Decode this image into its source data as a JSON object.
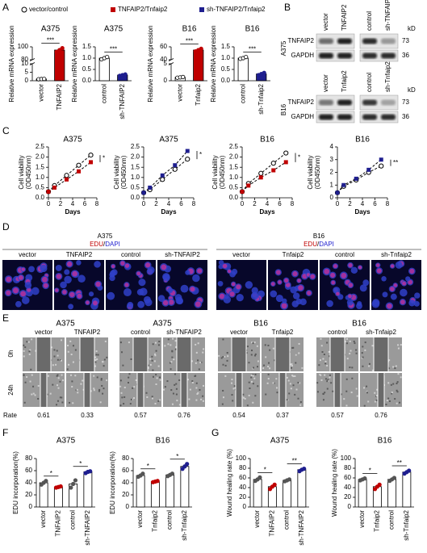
{
  "panel_labels": [
    "A",
    "B",
    "C",
    "D",
    "E",
    "F",
    "G"
  ],
  "legend": [
    {
      "label": "vector/control",
      "marker": "open-circle",
      "color": "#000000"
    },
    {
      "label": "TNFAIP2/Tnfaip2",
      "marker": "square",
      "color": "#c00000"
    },
    {
      "label": "sh-TNFAIP2/Tnfaip2",
      "marker": "square",
      "color": "#1f1f8f"
    }
  ],
  "chart_data": [
    {
      "type": "bar",
      "title": "A375",
      "ylabel": "Relative mRNA expression",
      "categories": [
        "vector",
        "TNFAIP2"
      ],
      "values": [
        1,
        95
      ],
      "points": [
        [
          0.9,
          1,
          1.1
        ],
        [
          92,
          95,
          98
        ]
      ],
      "colors": [
        "#ffffff",
        "#c00000"
      ],
      "point_colors": [
        "#ffffff",
        "#c00000"
      ],
      "ylim": [
        0,
        100
      ],
      "yticks": [
        0,
        5,
        10,
        80,
        100
      ],
      "broken_axis": true,
      "significance": [
        "***"
      ]
    },
    {
      "type": "bar",
      "title": "A375",
      "ylabel": "Relative mRNA expression",
      "categories": [
        "control",
        "sh-TNFAIP2"
      ],
      "values": [
        1,
        0.25
      ],
      "points": [
        [
          0.95,
          1,
          1.05
        ],
        [
          0.22,
          0.25,
          0.28
        ]
      ],
      "colors": [
        "#ffffff",
        "#1f1f8f"
      ],
      "point_colors": [
        "#ffffff",
        "#1f1f8f"
      ],
      "ylim": [
        0,
        1.5
      ],
      "yticks": [
        {
          "value": 0,
          "label": "0.0"
        },
        0.5,
        {
          "value": 1,
          "label": "1.0"
        },
        1.5
      ],
      "broken_axis": false,
      "significance": [
        "***"
      ]
    },
    {
      "type": "bar",
      "title": "B16",
      "ylabel": "Relative mRNA expression",
      "categories": [
        "vector",
        "Tnfaip2"
      ],
      "values": [
        1,
        55
      ],
      "points": [
        [
          0.9,
          1,
          1.1
        ],
        [
          53,
          55,
          57
        ]
      ],
      "colors": [
        "#ffffff",
        "#c00000"
      ],
      "point_colors": [
        "#ffffff",
        "#c00000"
      ],
      "ylim": [
        0,
        60
      ],
      "yticks": [
        0,
        5,
        40,
        60
      ],
      "broken_axis": true,
      "significance": [
        "***"
      ]
    },
    {
      "type": "bar",
      "title": "B16",
      "ylabel": "Relative mRNA expression",
      "categories": [
        "control",
        "sh-Tnfaip2"
      ],
      "values": [
        1,
        0.3
      ],
      "points": [
        [
          0.97,
          1,
          1.05
        ],
        [
          0.25,
          0.3,
          0.35
        ]
      ],
      "colors": [
        "#ffffff",
        "#1f1f8f"
      ],
      "point_colors": [
        "#ffffff",
        "#1f1f8f"
      ],
      "ylim": [
        0,
        1.5
      ],
      "yticks": [
        {
          "value": 0,
          "label": "0.0"
        },
        0.5,
        {
          "value": 1,
          "label": "1.0"
        },
        1.5
      ],
      "broken_axis": false,
      "significance": [
        "***"
      ]
    },
    {
      "type": "line",
      "title": "A375",
      "xlabel": "Days",
      "ylabel": [
        "Cell viability",
        "(OD450nm)"
      ],
      "x": [
        0,
        1,
        3,
        5,
        7
      ],
      "xlim": [
        0,
        8
      ],
      "xticks": [
        0,
        2,
        4,
        6,
        8
      ],
      "ylim": [
        0,
        2.5
      ],
      "yticks": [
        {
          "value": 0,
          "label": "0.0"
        },
        0.5,
        {
          "value": 1,
          "label": "1.0"
        },
        1.5,
        {
          "value": 2,
          "label": "2.0"
        },
        2.5
      ],
      "series": [
        {
          "color": "#000000",
          "marker": "open-circle",
          "values": [
            0.3,
            0.6,
            1.1,
            1.6,
            2.1
          ]
        },
        {
          "color": "#c00000",
          "marker": "square",
          "values": [
            0.3,
            0.5,
            0.9,
            1.3,
            1.75
          ]
        }
      ],
      "significance": "*"
    },
    {
      "type": "line",
      "title": "A375",
      "xlabel": "Days",
      "ylabel": [
        "Cell viability",
        "(OD450nm)"
      ],
      "x": [
        0,
        1,
        3,
        5,
        7
      ],
      "xlim": [
        0,
        8
      ],
      "xticks": [
        0,
        2,
        4,
        6,
        8
      ],
      "ylim": [
        0,
        2.5
      ],
      "yticks": [
        {
          "value": 0,
          "label": "0.0"
        },
        0.5,
        {
          "value": 1,
          "label": "1.0"
        },
        1.5,
        {
          "value": 2,
          "label": "2.0"
        },
        2.5
      ],
      "series": [
        {
          "color": "#000000",
          "marker": "open-circle",
          "values": [
            0.25,
            0.4,
            0.9,
            1.4,
            1.9
          ]
        },
        {
          "color": "#1f1f8f",
          "marker": "square",
          "values": [
            0.25,
            0.5,
            1.1,
            1.6,
            2.3
          ]
        }
      ],
      "significance": "*"
    },
    {
      "type": "line",
      "title": "B16",
      "xlabel": "Days",
      "ylabel": [
        "Cell viability",
        "(OD450nm)"
      ],
      "x": [
        0,
        1,
        3,
        5,
        7
      ],
      "xlim": [
        0,
        8
      ],
      "xticks": [
        0,
        2,
        4,
        6,
        8
      ],
      "ylim": [
        0,
        2.5
      ],
      "yticks": [
        {
          "value": 0,
          "label": "0.0"
        },
        0.5,
        {
          "value": 1,
          "label": "1.0"
        },
        1.5,
        {
          "value": 2,
          "label": "2.0"
        },
        2.5
      ],
      "series": [
        {
          "color": "#000000",
          "marker": "open-circle",
          "values": [
            0.3,
            0.7,
            1.2,
            1.7,
            2.2
          ]
        },
        {
          "color": "#c00000",
          "marker": "square",
          "values": [
            0.3,
            0.6,
            1.0,
            1.35,
            1.75
          ]
        }
      ],
      "significance": "*"
    },
    {
      "type": "line",
      "title": "B16",
      "xlabel": "Days",
      "ylabel": [
        "Cell viability",
        "(OD450nm)"
      ],
      "x": [
        0,
        1,
        3,
        5,
        7
      ],
      "xlim": [
        0,
        8
      ],
      "xticks": [
        0,
        2,
        4,
        6,
        8
      ],
      "ylim": [
        0,
        4
      ],
      "yticks": [
        0,
        1,
        2,
        3,
        4
      ],
      "series": [
        {
          "color": "#000000",
          "marker": "open-circle",
          "values": [
            0.4,
            0.9,
            1.4,
            2.0,
            2.5
          ]
        },
        {
          "color": "#1f1f8f",
          "marker": "square",
          "values": [
            0.4,
            1.0,
            1.5,
            2.2,
            3.0
          ]
        }
      ],
      "significance": "**"
    },
    {
      "type": "bar",
      "title": "A375",
      "ylabel": "EDU incorporation(%)",
      "categories": [
        "vector",
        "TNFAIP2",
        "control",
        "sh-TNFAIP2"
      ],
      "values": [
        40,
        33,
        38,
        58
      ],
      "points": [
        [
          37,
          40,
          43
        ],
        [
          32,
          33,
          34
        ],
        [
          32,
          38,
          44
        ],
        [
          56,
          58,
          59
        ]
      ],
      "colors": [
        "#ffffff",
        "#ffffff",
        "#ffffff",
        "#ffffff"
      ],
      "point_colors": [
        "#555555",
        "#c00000",
        "#555555",
        "#1f1f8f"
      ],
      "ylim": [
        0,
        80
      ],
      "yticks": [
        0,
        20,
        40,
        60,
        80
      ],
      "broken_axis": false,
      "significance": [
        "*",
        "*"
      ]
    },
    {
      "type": "bar",
      "title": "B16",
      "ylabel": "EDU incorporation(%)",
      "categories": [
        "vector",
        "Tnfaip2",
        "control",
        "sh-Tnfaip2"
      ],
      "values": [
        52,
        42,
        53,
        67
      ],
      "points": [
        [
          50,
          52,
          55
        ],
        [
          41,
          42,
          43
        ],
        [
          51,
          53,
          55
        ],
        [
          63,
          67,
          71
        ]
      ],
      "colors": [
        "#ffffff",
        "#ffffff",
        "#ffffff",
        "#ffffff"
      ],
      "point_colors": [
        "#555555",
        "#c00000",
        "#555555",
        "#1f1f8f"
      ],
      "ylim": [
        0,
        80
      ],
      "yticks": [
        0,
        20,
        40,
        60,
        80
      ],
      "broken_axis": false,
      "significance": [
        "*",
        "*"
      ]
    },
    {
      "type": "bar",
      "title": "A375",
      "ylabel": "Wound healing rate (%)",
      "categories": [
        "vector",
        "TNFAIP2",
        "control",
        "sh-TNFAIP2"
      ],
      "values": [
        57,
        42,
        55,
        77
      ],
      "points": [
        [
          54,
          57,
          61
        ],
        [
          37,
          42,
          46
        ],
        [
          53,
          55,
          57
        ],
        [
          74,
          77,
          79
        ]
      ],
      "colors": [
        "#ffffff",
        "#ffffff",
        "#ffffff",
        "#ffffff"
      ],
      "point_colors": [
        "#555555",
        "#c00000",
        "#555555",
        "#1f1f8f"
      ],
      "ylim": [
        0,
        100
      ],
      "yticks": [
        0,
        20,
        40,
        60,
        80,
        100
      ],
      "broken_axis": false,
      "significance": [
        "*",
        "**"
      ]
    },
    {
      "type": "bar",
      "title": "B16",
      "ylabel": "Wound healing rate (%)",
      "categories": [
        "vector",
        "Tnfaip2",
        "control",
        "sh-Tnfaip2"
      ],
      "values": [
        57,
        42,
        57,
        72
      ],
      "points": [
        [
          55,
          57,
          59
        ],
        [
          37,
          42,
          46
        ],
        [
          54,
          57,
          60
        ],
        [
          69,
          72,
          75
        ]
      ],
      "colors": [
        "#ffffff",
        "#ffffff",
        "#ffffff",
        "#ffffff"
      ],
      "point_colors": [
        "#555555",
        "#c00000",
        "#555555",
        "#1f1f8f"
      ],
      "ylim": [
        0,
        100
      ],
      "yticks": [
        0,
        20,
        40,
        60,
        80,
        100
      ],
      "broken_axis": false,
      "significance": [
        "*",
        "**"
      ]
    }
  ],
  "western_blot": {
    "unit": "kD",
    "blots": [
      {
        "cell_line": "A375",
        "lanes": [
          "vector",
          "TNFAIP2",
          "control",
          "sh-TNFAIP2"
        ],
        "proteins": [
          {
            "name": "TNFAIP2",
            "size": 73
          },
          {
            "name": "GAPDH",
            "size": 36
          }
        ]
      },
      {
        "cell_line": "B16",
        "lanes": [
          "vector",
          "Tnfaip2",
          "control",
          "sh-Tnfaip2"
        ],
        "proteins": [
          {
            "name": "TNFAIP2",
            "size": 73
          },
          {
            "name": "GAPDH",
            "size": 36
          }
        ]
      }
    ]
  },
  "edu_staining": {
    "stain": [
      "EDU",
      "/",
      "DAPI"
    ],
    "stain_colors": [
      "#c00000",
      "#000000",
      "#1f1fcf"
    ],
    "groups": [
      {
        "cell_line": "A375",
        "lanes": [
          "vector",
          "TNFAIP2",
          "control",
          "sh-TNFAIP2"
        ]
      },
      {
        "cell_line": "B16",
        "lanes": [
          "vector",
          "Tnfaip2",
          "control",
          "sh-Tnfaip2"
        ]
      }
    ]
  },
  "wound_healing": {
    "rows": [
      "0h",
      "24h"
    ],
    "rate_label": "Rate",
    "groups": [
      {
        "cell_line": "A375",
        "lanes": [
          "vector",
          "TNFAIP2"
        ],
        "rates": [
          0.61,
          0.33
        ]
      },
      {
        "cell_line": "A375",
        "lanes": [
          "control",
          "sh-TNFAIP2"
        ],
        "rates": [
          0.57,
          0.76
        ]
      },
      {
        "cell_line": "B16",
        "lanes": [
          "vector",
          "Tnfaip2"
        ],
        "rates": [
          0.54,
          0.37
        ]
      },
      {
        "cell_line": "B16",
        "lanes": [
          "control",
          "sh-Tnfaip2"
        ],
        "rates": [
          0.57,
          0.76
        ]
      }
    ]
  }
}
